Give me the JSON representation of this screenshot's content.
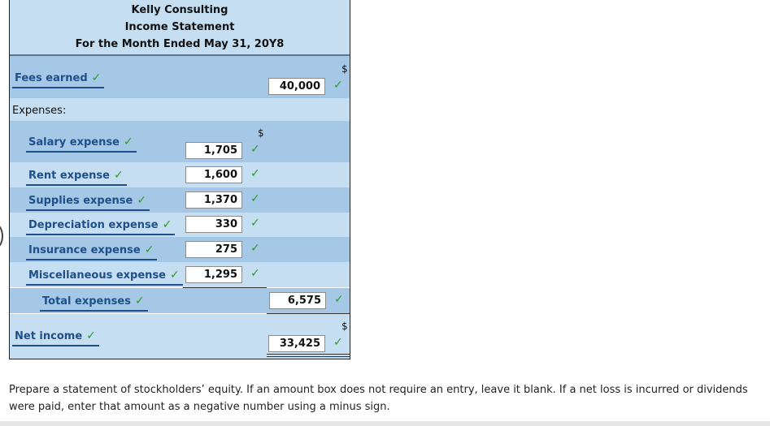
{
  "header": {
    "company": "Kelly Consulting",
    "statement": "Income Statement",
    "period": "For the Month Ended May 31, 20Y8"
  },
  "revenue": {
    "label": "Fees earned",
    "amount": "40,000",
    "currency": "$"
  },
  "expenses_label": "Expenses:",
  "expenses_currency": "$",
  "expenses": [
    {
      "label": "Salary expense",
      "amount": "1,705"
    },
    {
      "label": "Rent expense",
      "amount": "1,600"
    },
    {
      "label": "Supplies expense",
      "amount": "1,370"
    },
    {
      "label": "Depreciation expense",
      "amount": "330"
    },
    {
      "label": "Insurance expense",
      "amount": "275"
    },
    {
      "label": "Miscellaneous expense",
      "amount": "1,295"
    }
  ],
  "total_expenses": {
    "label": "Total expenses",
    "amount": "6,575"
  },
  "net_income": {
    "label": "Net income",
    "amount": "33,425",
    "currency": "$"
  },
  "check_glyph": "✓",
  "instructions": "Prepare a statement of stockholders’ equity. If an amount box does not require an entry, leave it blank. If a net loss is incurred or dividends were paid, enter that amount as a negative number using a minus sign.",
  "colors": {
    "light_band": "#c6def2",
    "dark_band": "#a5c8e6",
    "label_blue": "#1f4f8a",
    "check_green": "#2a9d2a"
  }
}
